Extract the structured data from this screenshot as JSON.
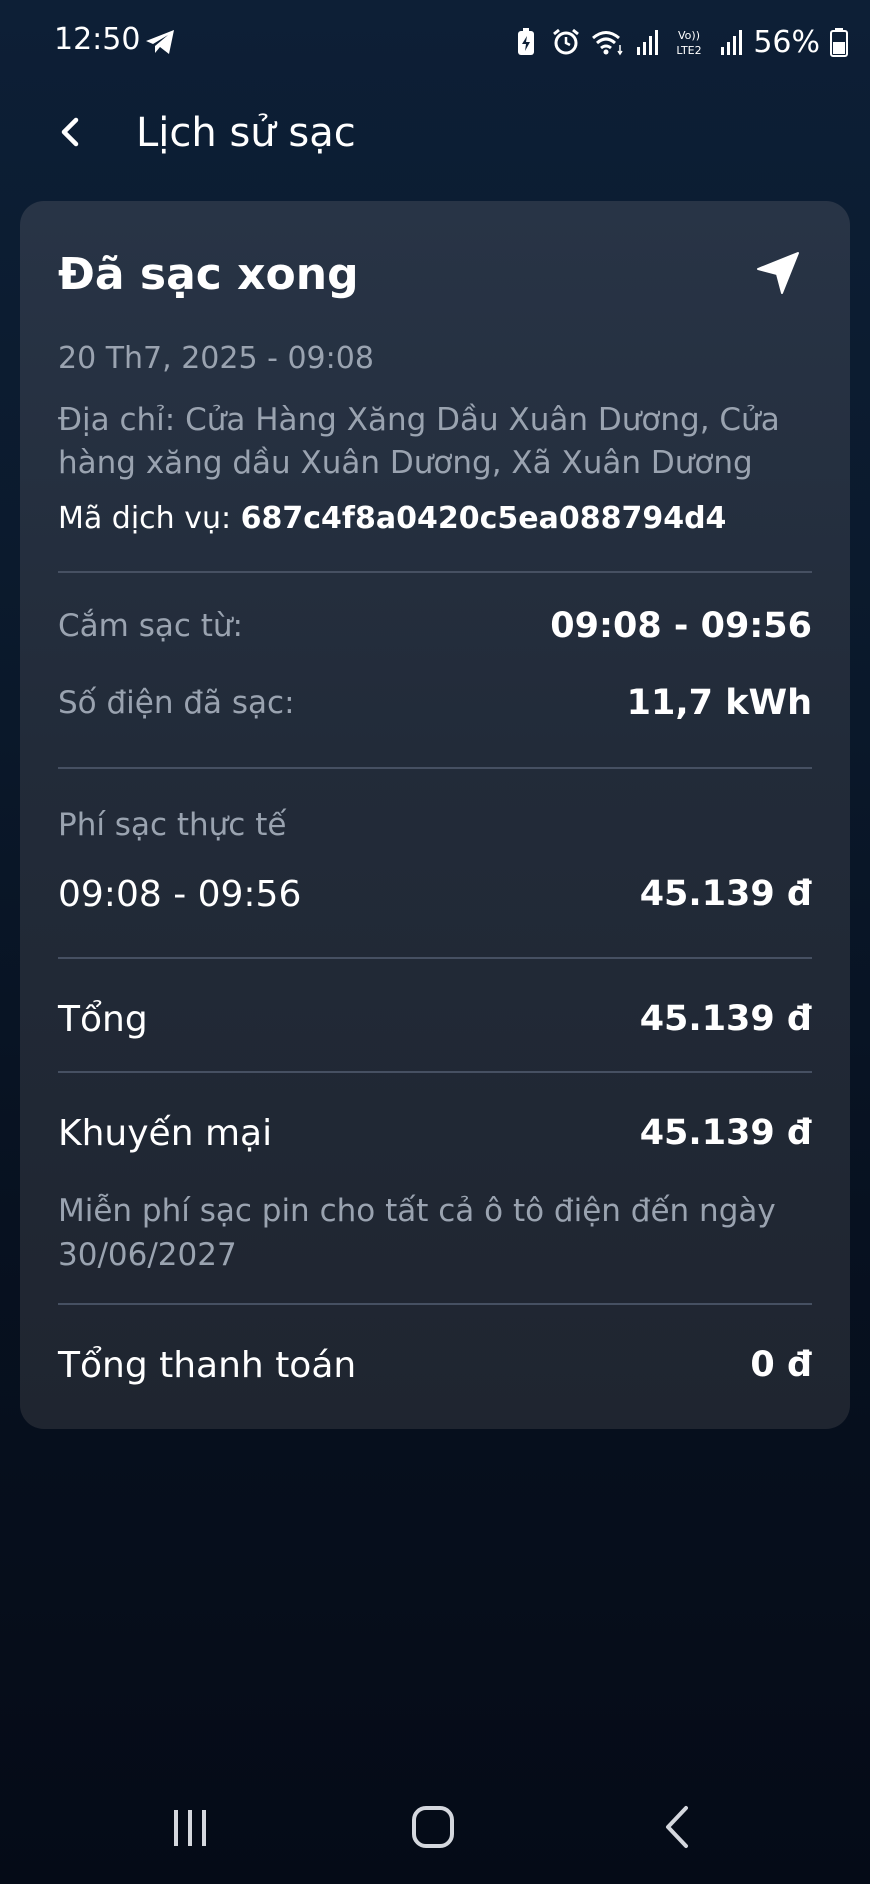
{
  "status_bar": {
    "time": "12:50",
    "battery_percent": "56%",
    "network_label": "Vo)) LTE2",
    "icons": [
      "telegram-icon",
      "battery-saver-icon",
      "alarm-icon",
      "wifi-icon",
      "signal-icon",
      "volte-icon",
      "signal-icon",
      "battery-icon"
    ]
  },
  "header": {
    "title": "Lịch sử sạc",
    "back_icon": "chevron-left-icon"
  },
  "card": {
    "title": "Đã sạc xong",
    "nav_icon": "navigation-arrow-icon",
    "date": "20 Th7, 2025 - 09:08",
    "address": "Địa chỉ: Cửa Hàng Xăng Dầu Xuân Dương, Cửa hàng xăng dầu Xuân Dương, Xã Xuân Dương",
    "service_code_label": "Mã dịch vụ: ",
    "service_code_value": "687c4f8a0420c5ea088794d4",
    "plug_time_label": "Cắm sạc từ:",
    "plug_time_value": "09:08 - 09:56",
    "energy_label": "Số điện đã sạc:",
    "energy_value": "11,7 kWh",
    "actual_fee_label": "Phí sạc thực tế",
    "actual_fee_period": "09:08 - 09:56",
    "actual_fee_value": "45.139 đ",
    "total_label": "Tổng",
    "total_value": "45.139 đ",
    "promo_label": "Khuyến mại",
    "promo_value": "45.139 đ",
    "promo_note": "Miễn phí sạc pin cho tất cả ô tô điện đến ngày 30/06/2027",
    "payment_label": "Tổng thanh toán",
    "payment_value": "0 đ"
  },
  "nav_bar": {
    "icons": [
      "recent-apps-icon",
      "home-icon",
      "back-icon"
    ]
  },
  "colors": {
    "background_top": "#0d1f36",
    "background_bottom": "#050b17",
    "card": "#252f3e",
    "muted_text": "#9aa3b0",
    "divider": "#465062",
    "text": "#ffffff"
  }
}
